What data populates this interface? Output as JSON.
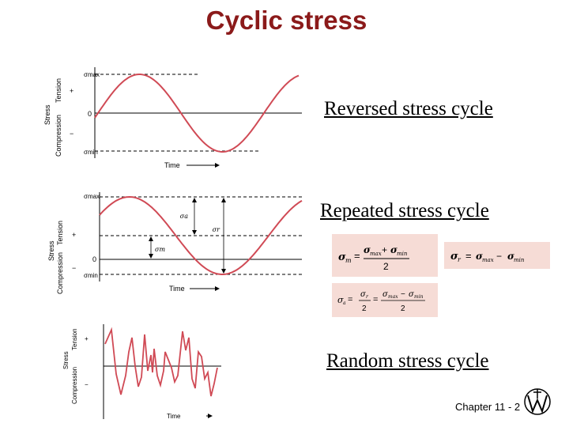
{
  "title": "Cyclic stress",
  "captions": {
    "reversed": "Reversed stress cycle",
    "repeated": "Repeated stress cycle",
    "random": "Random stress cycle"
  },
  "graph1": {
    "axis_label": "Stress",
    "tension": "Tension",
    "compression": "Compression",
    "plus": "+",
    "minus": "−",
    "zero": "0",
    "smax": "σmax",
    "smin": "σmin",
    "time": "Time"
  },
  "graph2": {
    "axis_label": "Stress",
    "tension": "Tension",
    "compression": "Compression",
    "plus": "+",
    "minus": "−",
    "zero": "0",
    "smax": "σmax",
    "smin": "σmin",
    "sa": "σa",
    "sr": "σr",
    "sm": "σm",
    "time": "Time"
  },
  "graph3": {
    "axis_label": "Stress",
    "tension": "Tension",
    "compression": "Compression",
    "plus": "+",
    "minus": "−",
    "time": "Time"
  },
  "equations": {
    "mean": "σm = (σmax + σmin) / 2",
    "range": "σr = σmax − σmin",
    "amplitude": "σa = σr / 2 = (σmax − σmin) / 2"
  },
  "footer": "Chapter 11 -  2",
  "colors": {
    "title": "#8b1a1a",
    "curve": "#d04a55",
    "eq_bg": "#f6dcd6"
  },
  "logo": "wiley-logo"
}
